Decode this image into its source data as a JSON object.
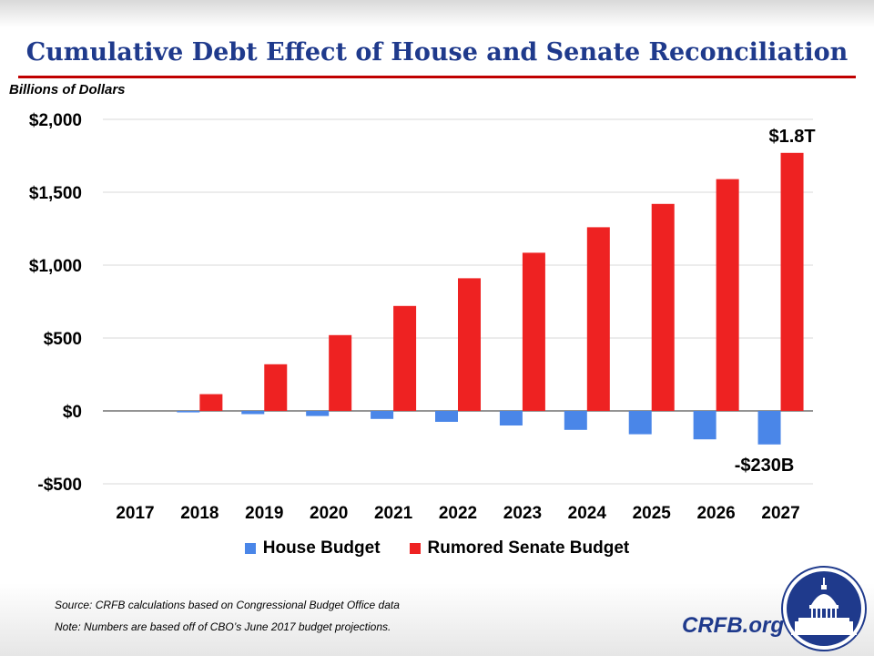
{
  "title": "Cumulative Debt Effect of House and Senate Reconciliation",
  "y_axis_label": "Billions of Dollars",
  "colors": {
    "house": "#4a86e8",
    "senate": "#ee2222",
    "title": "#1f3a8c",
    "rule": "#c00000",
    "navy": "#1f3a8c"
  },
  "chart_data": {
    "type": "bar",
    "categories": [
      "2017",
      "2018",
      "2019",
      "2020",
      "2021",
      "2022",
      "2023",
      "2024",
      "2025",
      "2026",
      "2027"
    ],
    "series": [
      {
        "name": "House Budget",
        "values": [
          0,
          -10,
          -22,
          -35,
          -55,
          -75,
          -100,
          -130,
          -160,
          -195,
          -230
        ]
      },
      {
        "name": "Rumored Senate Budget",
        "values": [
          0,
          115,
          320,
          520,
          720,
          910,
          1085,
          1260,
          1420,
          1590,
          1770
        ]
      }
    ],
    "ylim": [
      -500,
      2000
    ],
    "yticks": [
      2000,
      1500,
      1000,
      500,
      0,
      -500
    ],
    "ytick_labels": [
      "$2,000",
      "$1,500",
      "$1,000",
      "$500",
      "$0",
      "-$500"
    ],
    "ylabel": "Billions of Dollars",
    "xlabel": "",
    "grid": true,
    "legend_position": "bottom",
    "annotations": [
      {
        "text": "$1.8T",
        "category": "2027",
        "series": "Rumored Senate Budget"
      },
      {
        "text": "-$230B",
        "category": "2027",
        "series": "House Budget"
      }
    ]
  },
  "legend": {
    "items": [
      {
        "label": "House Budget",
        "color": "#4a86e8"
      },
      {
        "label": "Rumored Senate Budget",
        "color": "#ee2222"
      }
    ]
  },
  "footer": {
    "source": "Source: CRFB calculations based on Congressional Budget Office data",
    "note": "Note: Numbers are based off of CBO’s June 2017 budget projections.",
    "brand": "CRFB.org"
  }
}
